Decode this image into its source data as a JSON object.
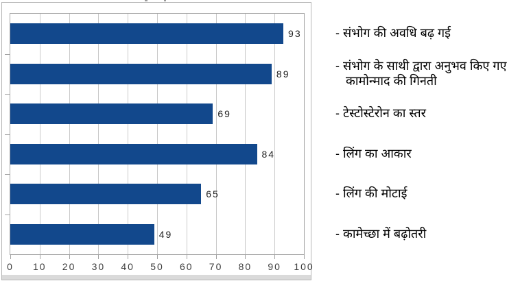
{
  "chart_data": {
    "type": "bar",
    "orientation": "horizontal",
    "title": "",
    "categories": [
      "संभोग की अवधि बढ़ गई",
      "संभोग के साथी द्वारा अनुभव किए गए कामोन्माद की गिनती",
      "टेस्टोस्टेरोन का स्तर",
      "लिंग का आकार",
      "लिंग की मोटाई",
      "कामेच्छा में बढ़ोतरी"
    ],
    "values": [
      93,
      89,
      69,
      84,
      65,
      49
    ],
    "label_prefix": "- ",
    "xlim": [
      0,
      100
    ],
    "x_ticks": [
      0,
      10,
      20,
      30,
      40,
      50,
      60,
      70,
      80,
      90,
      100
    ],
    "grid": "vertical",
    "legend_position": "right",
    "value_labels_shown": true,
    "colors": {
      "bar": "#12488c",
      "gridline": "#c9c9c9",
      "axis": "#a2a2a2",
      "tick_text": "#3c3c3c",
      "value_text": "#1f1f1f",
      "label_text": "#000000",
      "frame_border": "#b5b5b5",
      "bottom_strip": "#dadada"
    }
  }
}
